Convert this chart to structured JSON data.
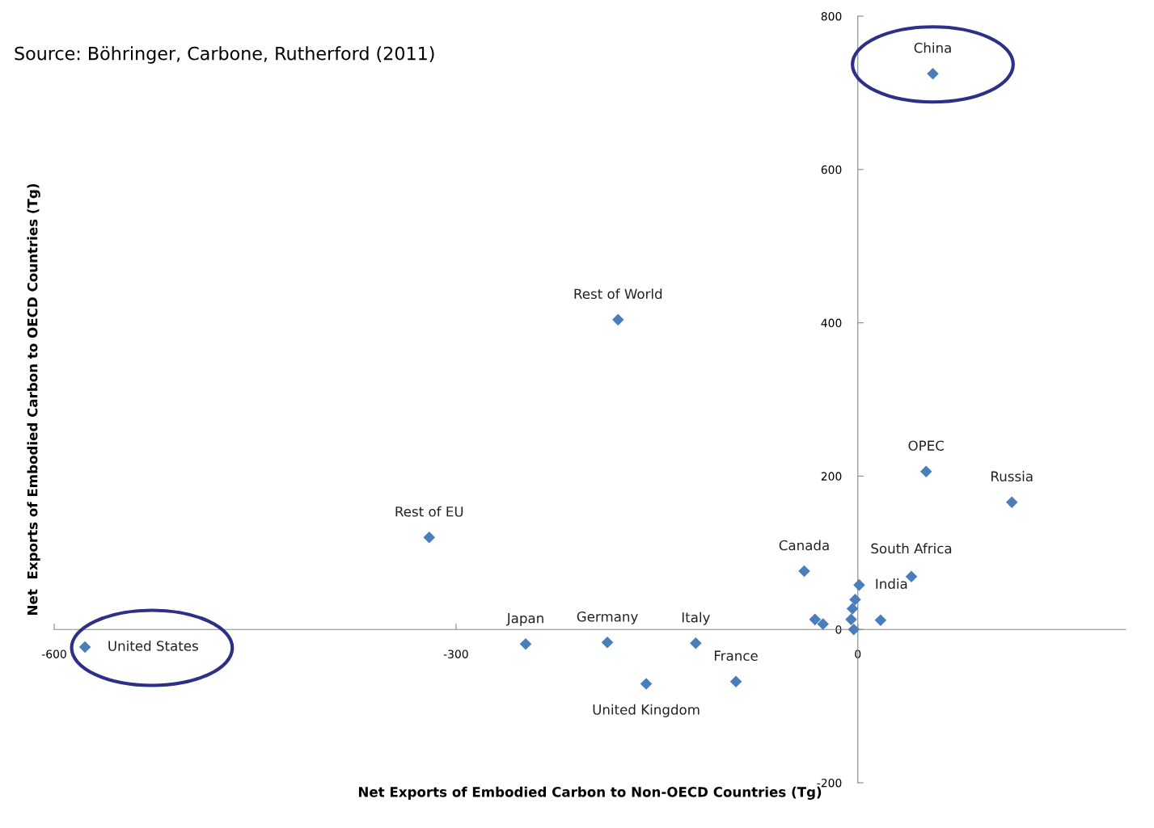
{
  "chart_data": {
    "type": "scatter",
    "xlabel": "Net Exports of Embodied Carbon to Non-OECD Countries (Tg)",
    "ylabel": "Net  Exports of Embodied Carbon to OECD Countries (Tg)",
    "x": [
      -577,
      -248,
      -187,
      -158,
      -121,
      -91,
      -320,
      -179,
      56,
      51,
      115,
      -40,
      40,
      1,
      -32,
      -26,
      -2,
      -4,
      -5,
      -3,
      17
    ],
    "series": [
      {
        "color": "#4a7ebb",
        "values": [
          -23,
          -19,
          -17,
          -71,
          -18,
          -68,
          120,
          404,
          725,
          206,
          166,
          76,
          69,
          58,
          13,
          7,
          39,
          27,
          13,
          0,
          12
        ]
      }
    ],
    "xlim": [
      -600,
      200
    ],
    "xticks": [
      -600,
      -300,
      0
    ],
    "ylim": [
      -200,
      800
    ],
    "yticks": [
      -200,
      0,
      200,
      400,
      600,
      800
    ],
    "marker": "diamond",
    "grid": false,
    "annotations": [
      {
        "text": "United States",
        "x": -577,
        "y": -23
      },
      {
        "text": "Japan",
        "x": -248,
        "y": -19
      },
      {
        "text": "Germany",
        "x": -187,
        "y": -17
      },
      {
        "text": "United Kingdom",
        "x": -158,
        "y": -71
      },
      {
        "text": "Italy",
        "x": -121,
        "y": -18
      },
      {
        "text": "France",
        "x": -91,
        "y": -68
      },
      {
        "text": "Rest of EU",
        "x": -320,
        "y": 120
      },
      {
        "text": "Rest of World",
        "x": -179,
        "y": 404
      },
      {
        "text": "China",
        "x": 56,
        "y": 725
      },
      {
        "text": "OPEC",
        "x": 51,
        "y": 206
      },
      {
        "text": "Russia",
        "x": 115,
        "y": 166
      },
      {
        "text": "Canada",
        "x": -40,
        "y": 76
      },
      {
        "text": "South Africa",
        "x": 40,
        "y": 69
      },
      {
        "text": "India",
        "x": 1,
        "y": 58
      },
      "Source: Böhringer, Carbone, Rutherford (2011)"
    ]
  }
}
